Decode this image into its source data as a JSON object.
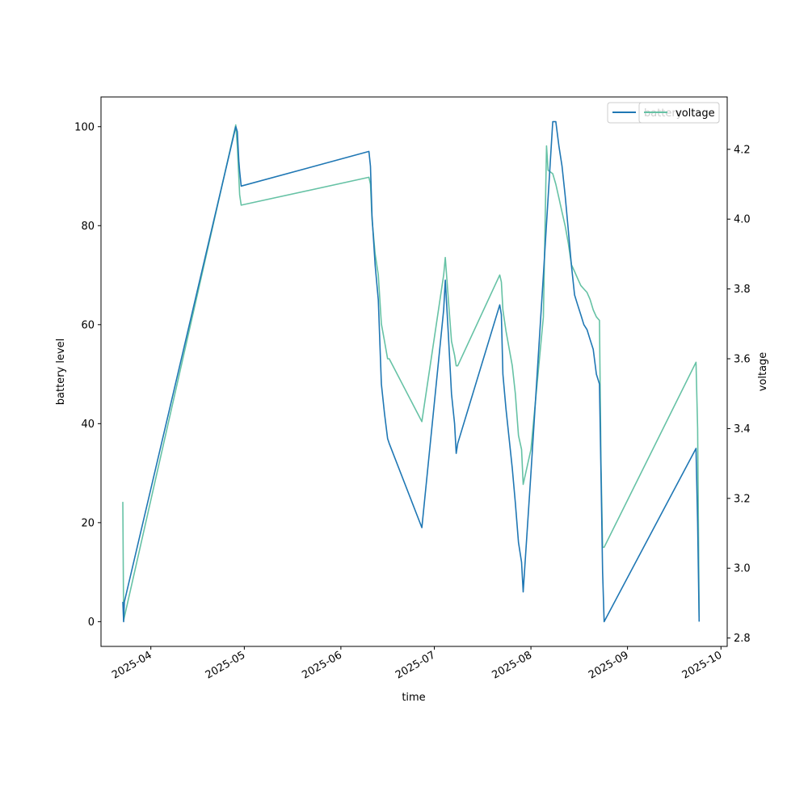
{
  "colors": {
    "battery": "#1f77b4",
    "voltage": "#66c2a5",
    "axis": "#000000",
    "background": "#ffffff"
  },
  "chart_data": {
    "type": "line",
    "title": "",
    "xlabel": "time",
    "ylabel_left": "battery level",
    "ylabel_right": "voltage",
    "grid": false,
    "legend_placement": "upper right",
    "xlim": [
      "2025-03-16",
      "2025-10-03"
    ],
    "ylim_left": [
      -5,
      106
    ],
    "ylim_right": [
      2.776,
      4.35
    ],
    "x_ticks": [
      {
        "value": "2025-04-01",
        "label": "2025-04"
      },
      {
        "value": "2025-05-01",
        "label": "2025-05"
      },
      {
        "value": "2025-06-01",
        "label": "2025-06"
      },
      {
        "value": "2025-07-01",
        "label": "2025-07"
      },
      {
        "value": "2025-08-01",
        "label": "2025-08"
      },
      {
        "value": "2025-09-01",
        "label": "2025-09"
      },
      {
        "value": "2025-10-01",
        "label": "2025-10"
      }
    ],
    "y_ticks_left": [
      {
        "value": 0,
        "label": "0"
      },
      {
        "value": 20,
        "label": "20"
      },
      {
        "value": 40,
        "label": "40"
      },
      {
        "value": 60,
        "label": "60"
      },
      {
        "value": 80,
        "label": "80"
      },
      {
        "value": 100,
        "label": "100"
      }
    ],
    "y_ticks_right": [
      {
        "value": 2.8,
        "label": "2.8"
      },
      {
        "value": 3.0,
        "label": "3.0"
      },
      {
        "value": 3.2,
        "label": "3.2"
      },
      {
        "value": 3.4,
        "label": "3.4"
      },
      {
        "value": 3.6,
        "label": "3.6"
      },
      {
        "value": 3.8,
        "label": "3.8"
      },
      {
        "value": 4.0,
        "label": "4.0"
      },
      {
        "value": 4.2,
        "label": "4.2"
      }
    ],
    "series": [
      {
        "name": "battery",
        "axis": "left",
        "points": [
          [
            "2025-03-23T00:00",
            4
          ],
          [
            "2025-03-23T06:00",
            0
          ],
          [
            "2025-03-23T12:00",
            4
          ],
          [
            "2025-04-28T06:00",
            100
          ],
          [
            "2025-04-28T18:00",
            99
          ],
          [
            "2025-04-29T06:00",
            93
          ],
          [
            "2025-04-29T12:00",
            91
          ],
          [
            "2025-04-30T00:00",
            88
          ],
          [
            "2025-06-10T00:00",
            95
          ],
          [
            "2025-06-10T12:00",
            92
          ],
          [
            "2025-06-11T00:00",
            82
          ],
          [
            "2025-06-12T00:00",
            72
          ],
          [
            "2025-06-13T00:00",
            65
          ],
          [
            "2025-06-14T00:00",
            48
          ],
          [
            "2025-06-15T00:00",
            42
          ],
          [
            "2025-06-16T00:00",
            37
          ],
          [
            "2025-06-16T12:00",
            36
          ],
          [
            "2025-06-27T00:00",
            19
          ],
          [
            "2025-07-04T00:00",
            63
          ],
          [
            "2025-07-04T12:00",
            69
          ],
          [
            "2025-07-05T12:00",
            58
          ],
          [
            "2025-07-06T12:00",
            46
          ],
          [
            "2025-07-07T12:00",
            40
          ],
          [
            "2025-07-08T00:00",
            34
          ],
          [
            "2025-07-08T12:00",
            36
          ],
          [
            "2025-07-22T00:00",
            64
          ],
          [
            "2025-07-22T12:00",
            62
          ],
          [
            "2025-07-23T00:00",
            50
          ],
          [
            "2025-07-24T00:00",
            43
          ],
          [
            "2025-07-25T00:00",
            37
          ],
          [
            "2025-07-26T00:00",
            31
          ],
          [
            "2025-07-27T00:00",
            24
          ],
          [
            "2025-07-28T00:00",
            16
          ],
          [
            "2025-07-29T00:00",
            12
          ],
          [
            "2025-07-29T12:00",
            6
          ],
          [
            "2025-08-01T00:00",
            30
          ],
          [
            "2025-08-05T00:00",
            70
          ],
          [
            "2025-08-08T00:00",
            101
          ],
          [
            "2025-08-09T00:00",
            101
          ],
          [
            "2025-08-10T00:00",
            96
          ],
          [
            "2025-08-11T00:00",
            92
          ],
          [
            "2025-08-12T00:00",
            86
          ],
          [
            "2025-08-13T00:00",
            79
          ],
          [
            "2025-08-14T00:00",
            72
          ],
          [
            "2025-08-15T00:00",
            66
          ],
          [
            "2025-08-16T00:00",
            64
          ],
          [
            "2025-08-17T00:00",
            62
          ],
          [
            "2025-08-18T00:00",
            60
          ],
          [
            "2025-08-19T00:00",
            59
          ],
          [
            "2025-08-20T00:00",
            57
          ],
          [
            "2025-08-21T00:00",
            55
          ],
          [
            "2025-08-22T00:00",
            50
          ],
          [
            "2025-08-23T00:00",
            48
          ],
          [
            "2025-08-23T12:00",
            30
          ],
          [
            "2025-08-24T00:00",
            10
          ],
          [
            "2025-08-24T12:00",
            0
          ],
          [
            "2025-09-23T00:00",
            35
          ],
          [
            "2025-09-23T12:00",
            20
          ],
          [
            "2025-09-24T00:00",
            0
          ]
        ]
      },
      {
        "name": "voltage",
        "axis": "right",
        "points": [
          [
            "2025-03-23T00:00",
            3.19
          ],
          [
            "2025-03-23T06:00",
            2.85
          ],
          [
            "2025-03-23T12:00",
            2.86
          ],
          [
            "2025-04-28T06:00",
            4.27
          ],
          [
            "2025-04-28T18:00",
            4.21
          ],
          [
            "2025-04-29T06:00",
            4.12
          ],
          [
            "2025-04-29T12:00",
            4.07
          ],
          [
            "2025-04-30T00:00",
            4.04
          ],
          [
            "2025-06-10T00:00",
            4.12
          ],
          [
            "2025-06-10T12:00",
            4.1
          ],
          [
            "2025-06-11T00:00",
            4.0
          ],
          [
            "2025-06-12T00:00",
            3.9
          ],
          [
            "2025-06-13T00:00",
            3.84
          ],
          [
            "2025-06-14T00:00",
            3.7
          ],
          [
            "2025-06-15T00:00",
            3.65
          ],
          [
            "2025-06-16T00:00",
            3.6
          ],
          [
            "2025-06-16T12:00",
            3.6
          ],
          [
            "2025-06-27T00:00",
            3.42
          ],
          [
            "2025-07-04T00:00",
            3.84
          ],
          [
            "2025-07-04T12:00",
            3.89
          ],
          [
            "2025-07-05T12:00",
            3.77
          ],
          [
            "2025-07-06T12:00",
            3.65
          ],
          [
            "2025-07-07T12:00",
            3.61
          ],
          [
            "2025-07-08T00:00",
            3.58
          ],
          [
            "2025-07-08T12:00",
            3.58
          ],
          [
            "2025-07-22T00:00",
            3.84
          ],
          [
            "2025-07-22T12:00",
            3.82
          ],
          [
            "2025-07-23T00:00",
            3.74
          ],
          [
            "2025-07-24T00:00",
            3.68
          ],
          [
            "2025-07-25T00:00",
            3.63
          ],
          [
            "2025-07-26T00:00",
            3.58
          ],
          [
            "2025-07-27T00:00",
            3.5
          ],
          [
            "2025-07-28T00:00",
            3.38
          ],
          [
            "2025-07-29T00:00",
            3.34
          ],
          [
            "2025-07-29T12:00",
            3.24
          ],
          [
            "2025-08-01T00:00",
            3.34
          ],
          [
            "2025-08-05T00:00",
            3.72
          ],
          [
            "2025-08-06T00:00",
            4.21
          ],
          [
            "2025-08-06T12:00",
            4.14
          ],
          [
            "2025-08-08T00:00",
            4.13
          ],
          [
            "2025-08-09T00:00",
            4.1
          ],
          [
            "2025-08-10T00:00",
            4.06
          ],
          [
            "2025-08-11T00:00",
            4.02
          ],
          [
            "2025-08-12T00:00",
            3.98
          ],
          [
            "2025-08-13T00:00",
            3.93
          ],
          [
            "2025-08-14T00:00",
            3.87
          ],
          [
            "2025-08-15T00:00",
            3.85
          ],
          [
            "2025-08-16T00:00",
            3.83
          ],
          [
            "2025-08-17T00:00",
            3.81
          ],
          [
            "2025-08-18T00:00",
            3.8
          ],
          [
            "2025-08-19T00:00",
            3.79
          ],
          [
            "2025-08-20T00:00",
            3.77
          ],
          [
            "2025-08-21T00:00",
            3.74
          ],
          [
            "2025-08-22T00:00",
            3.72
          ],
          [
            "2025-08-23T00:00",
            3.71
          ],
          [
            "2025-08-23T12:00",
            3.3
          ],
          [
            "2025-08-24T00:00",
            3.06
          ],
          [
            "2025-08-24T12:00",
            3.06
          ],
          [
            "2025-09-23T00:00",
            3.59
          ],
          [
            "2025-09-23T12:00",
            3.4
          ],
          [
            "2025-09-24T00:00",
            2.86
          ]
        ]
      }
    ],
    "legend": [
      "battery",
      "voltage"
    ]
  }
}
